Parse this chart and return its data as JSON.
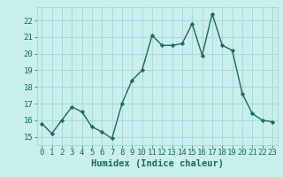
{
  "x": [
    0,
    1,
    2,
    3,
    4,
    5,
    6,
    7,
    8,
    9,
    10,
    11,
    12,
    13,
    14,
    15,
    16,
    17,
    18,
    19,
    20,
    21,
    22,
    23
  ],
  "y": [
    15.8,
    15.2,
    16.0,
    16.8,
    16.5,
    15.6,
    15.3,
    14.9,
    17.0,
    18.4,
    19.0,
    21.1,
    20.5,
    20.5,
    20.6,
    21.8,
    19.9,
    22.4,
    20.5,
    20.2,
    17.6,
    16.4,
    16.0,
    15.9
  ],
  "line_color": "#1a6b5a",
  "marker": "D",
  "markersize": 2.2,
  "linewidth": 1.0,
  "bg_color": "#c8eeee",
  "grid_color": "#a0d0d0",
  "ylim": [
    14.5,
    22.8
  ],
  "xlim": [
    -0.5,
    23.5
  ],
  "yticks": [
    15,
    16,
    17,
    18,
    19,
    20,
    21,
    22
  ],
  "xticks": [
    0,
    1,
    2,
    3,
    4,
    5,
    6,
    7,
    8,
    9,
    10,
    11,
    12,
    13,
    14,
    15,
    16,
    17,
    18,
    19,
    20,
    21,
    22,
    23
  ],
  "tick_color": "#1a6b5a",
  "label_color": "#1a6b5a",
  "tick_fontsize": 6.5,
  "xlabel": "Humidex (Indice chaleur)",
  "xlabel_fontsize": 7.5,
  "xlabel_fontweight": "bold"
}
